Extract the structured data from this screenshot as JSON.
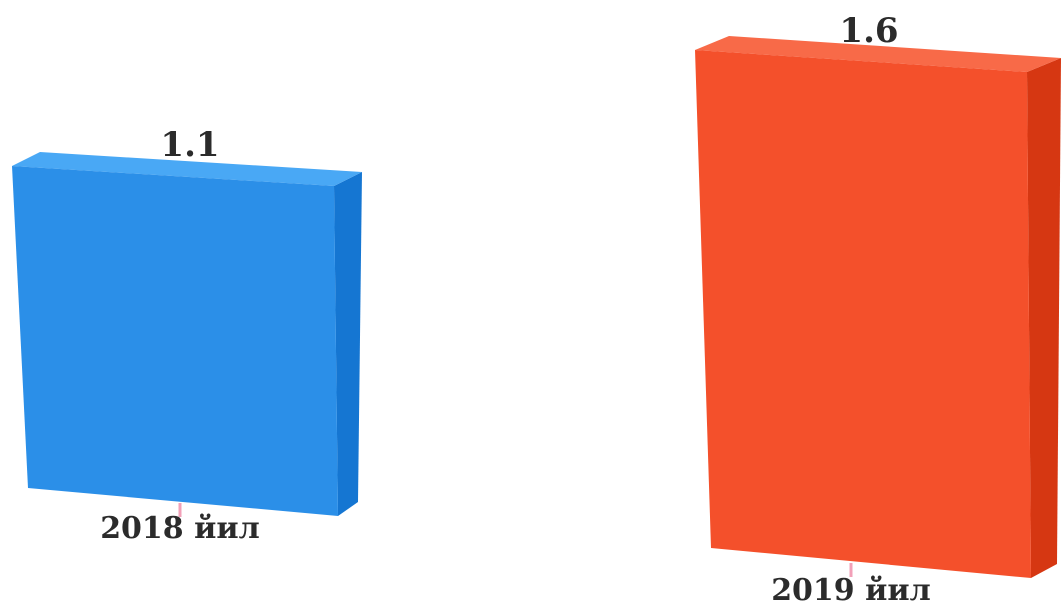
{
  "chart_data": {
    "type": "bar",
    "categories": [
      "2018 йил",
      "2019 йил"
    ],
    "values": [
      1.1,
      1.6
    ],
    "data_labels": [
      "1.1",
      "1.6"
    ],
    "title": "",
    "xlabel": "",
    "ylabel": "",
    "ylim": [
      0,
      1.6
    ],
    "grid": false,
    "legend": "none",
    "style": "3d",
    "colors": {
      "2018 йил": {
        "front": "#2B8FE8",
        "top": "#49A8F5",
        "side": "#1576D2"
      },
      "2019 йил": {
        "front": "#F4502B",
        "top": "#F86A48",
        "side": "#D63712"
      }
    },
    "tick_color": "#F2A0B8"
  }
}
